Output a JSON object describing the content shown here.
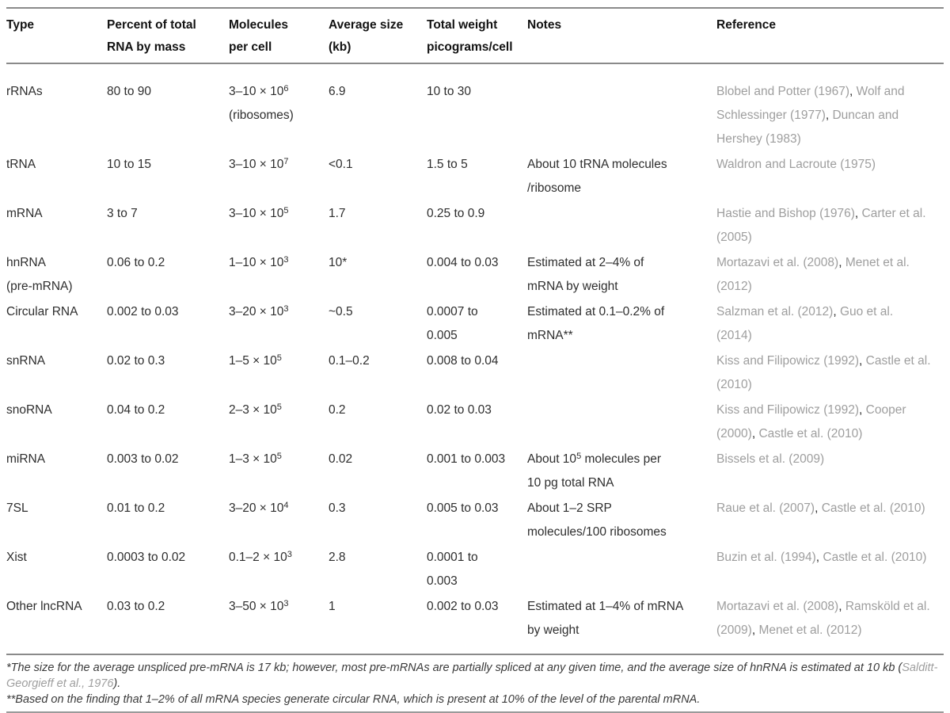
{
  "colors": {
    "text": "#2e2e2e",
    "header_text": "#121212",
    "reference_gray": "#9e9e9e",
    "rule_gray": "#8a8a8a",
    "background": "#ffffff"
  },
  "table": {
    "headers": [
      {
        "slug": "type",
        "lines": [
          "Type"
        ]
      },
      {
        "slug": "percent",
        "lines": [
          "Percent of total",
          "RNA by mass"
        ]
      },
      {
        "slug": "molecules",
        "lines": [
          "Molecules",
          "per cell"
        ]
      },
      {
        "slug": "size",
        "lines": [
          "Average size",
          "(kb)"
        ]
      },
      {
        "slug": "weight",
        "lines": [
          "Total weight",
          "picograms/cell"
        ]
      },
      {
        "slug": "notes",
        "lines": [
          "Notes"
        ]
      },
      {
        "slug": "reference",
        "lines": [
          "Reference"
        ]
      }
    ],
    "rows": [
      {
        "type": [
          {
            "t": "rRNAs"
          }
        ],
        "percent": [
          {
            "t": "80 to 90"
          }
        ],
        "molecules": [
          {
            "t": "3–10 × 10"
          },
          {
            "t": "6",
            "sup": true
          },
          {
            "br": true
          },
          {
            "t": "(ribosomes)"
          }
        ],
        "size": [
          {
            "t": "6.9"
          }
        ],
        "weight": [
          {
            "t": "10 to 30"
          }
        ],
        "notes": [],
        "refs": [
          "Blobel and Potter (1967)",
          "Wolf and Schlessinger (1977)",
          "Duncan and Hershey (1983)"
        ]
      },
      {
        "type": [
          {
            "t": "tRNA"
          }
        ],
        "percent": [
          {
            "t": "10 to 15"
          }
        ],
        "molecules": [
          {
            "t": "3–10 × 10"
          },
          {
            "t": "7",
            "sup": true
          }
        ],
        "size": [
          {
            "t": "<0.1"
          }
        ],
        "weight": [
          {
            "t": "1.5 to 5"
          }
        ],
        "notes": [
          {
            "t": "About 10 tRNA molecules"
          },
          {
            "br": true
          },
          {
            "t": "/ribosome"
          }
        ],
        "refs": [
          "Waldron and Lacroute (1975)"
        ]
      },
      {
        "type": [
          {
            "t": "mRNA"
          }
        ],
        "percent": [
          {
            "t": "3 to 7"
          }
        ],
        "molecules": [
          {
            "t": "3–10 × 10"
          },
          {
            "t": "5",
            "sup": true
          }
        ],
        "size": [
          {
            "t": "1.7"
          }
        ],
        "weight": [
          {
            "t": "0.25 to 0.9"
          }
        ],
        "notes": [],
        "refs": [
          "Hastie and Bishop (1976)",
          "Carter et al. (2005)"
        ]
      },
      {
        "type": [
          {
            "t": "hnRNA"
          },
          {
            "br": true
          },
          {
            "t": "(pre-mRNA)"
          }
        ],
        "percent": [
          {
            "t": "0.06 to 0.2"
          }
        ],
        "molecules": [
          {
            "t": "1–10 × 10"
          },
          {
            "t": "3",
            "sup": true
          }
        ],
        "size": [
          {
            "t": "10*"
          }
        ],
        "weight": [
          {
            "t": "0.004 to 0.03"
          }
        ],
        "notes": [
          {
            "t": "Estimated at 2–4% of"
          },
          {
            "br": true
          },
          {
            "t": "mRNA by weight"
          }
        ],
        "refs": [
          "Mortazavi et al. (2008)",
          "Menet et al. (2012)"
        ]
      },
      {
        "type": [
          {
            "t": "Circular RNA"
          }
        ],
        "percent": [
          {
            "t": "0.002 to 0.03"
          }
        ],
        "molecules": [
          {
            "t": "3–20 × 10"
          },
          {
            "t": "3",
            "sup": true
          }
        ],
        "size": [
          {
            "t": "~0.5"
          }
        ],
        "weight": [
          {
            "t": "0.0007 to"
          },
          {
            "br": true
          },
          {
            "t": "0.005"
          }
        ],
        "notes": [
          {
            "t": "Estimated at 0.1–0.2% of"
          },
          {
            "br": true
          },
          {
            "t": "mRNA**"
          }
        ],
        "refs": [
          "Salzman et al. (2012)",
          "Guo et al. (2014)"
        ]
      },
      {
        "type": [
          {
            "t": "snRNA"
          }
        ],
        "percent": [
          {
            "t": "0.02 to 0.3"
          }
        ],
        "molecules": [
          {
            "t": "1–5 × 10"
          },
          {
            "t": "5",
            "sup": true
          }
        ],
        "size": [
          {
            "t": "0.1–0.2"
          }
        ],
        "weight": [
          {
            "t": "0.008 to 0.04"
          }
        ],
        "notes": [],
        "refs": [
          "Kiss and Filipowicz (1992)",
          "Castle et al. (2010)"
        ]
      },
      {
        "type": [
          {
            "t": "snoRNA"
          }
        ],
        "percent": [
          {
            "t": "0.04 to 0.2"
          }
        ],
        "molecules": [
          {
            "t": "2–3 × 10"
          },
          {
            "t": "5",
            "sup": true
          }
        ],
        "size": [
          {
            "t": "0.2"
          }
        ],
        "weight": [
          {
            "t": "0.02 to 0.03"
          }
        ],
        "notes": [],
        "refs": [
          "Kiss and Filipowicz (1992)",
          "Cooper (2000)",
          "Castle et al. (2010)"
        ]
      },
      {
        "type": [
          {
            "t": "miRNA"
          }
        ],
        "percent": [
          {
            "t": "0.003 to 0.02"
          }
        ],
        "molecules": [
          {
            "t": "1–3 × 10"
          },
          {
            "t": "5",
            "sup": true
          }
        ],
        "size": [
          {
            "t": "0.02"
          }
        ],
        "weight": [
          {
            "t": "0.001 to 0.003"
          }
        ],
        "notes": [
          {
            "t": "About 10"
          },
          {
            "t": "5",
            "sup": true
          },
          {
            "t": " molecules per"
          },
          {
            "br": true
          },
          {
            "t": "10 pg total RNA"
          }
        ],
        "refs": [
          "Bissels et al. (2009)"
        ]
      },
      {
        "type": [
          {
            "t": "7SL"
          }
        ],
        "percent": [
          {
            "t": "0.01 to 0.2"
          }
        ],
        "molecules": [
          {
            "t": "3–20 × 10"
          },
          {
            "t": "4",
            "sup": true
          }
        ],
        "size": [
          {
            "t": "0.3"
          }
        ],
        "weight": [
          {
            "t": "0.005 to 0.03"
          }
        ],
        "notes": [
          {
            "t": "About 1–2 SRP"
          },
          {
            "br": true
          },
          {
            "t": "molecules/100 ribosomes"
          }
        ],
        "refs": [
          "Raue et al. (2007)",
          "Castle et al. (2010)"
        ]
      },
      {
        "type": [
          {
            "t": "Xist"
          }
        ],
        "percent": [
          {
            "t": "0.0003 to 0.02"
          }
        ],
        "molecules": [
          {
            "t": "0.1–2 × 10"
          },
          {
            "t": "3",
            "sup": true
          }
        ],
        "size": [
          {
            "t": "2.8"
          }
        ],
        "weight": [
          {
            "t": "0.0001 to"
          },
          {
            "br": true
          },
          {
            "t": "0.003"
          }
        ],
        "notes": [],
        "refs": [
          "Buzin et al. (1994)",
          "Castle et al. (2010)"
        ]
      },
      {
        "type": [
          {
            "t": "Other lncRNA"
          }
        ],
        "percent": [
          {
            "t": "0.03 to 0.2"
          }
        ],
        "molecules": [
          {
            "t": "3–50 × 10"
          },
          {
            "t": "3",
            "sup": true
          }
        ],
        "size": [
          {
            "t": "1"
          }
        ],
        "weight": [
          {
            "t": "0.002 to 0.03"
          }
        ],
        "notes": [
          {
            "t": "Estimated at 1–4% of mRNA"
          },
          {
            "br": true
          },
          {
            "t": "by weight"
          }
        ],
        "refs": [
          "Mortazavi et al. (2008)",
          "Ramsköld et al. (2009)",
          "Menet et al. (2012)"
        ]
      }
    ]
  },
  "footnotes": [
    [
      {
        "t": "*The size for the average unspliced pre-mRNA is 17 kb; however, most pre-mRNAs are partially spliced at any given time, and the average size of hnRNA is estimated at 10 kb ("
      },
      {
        "t": "Salditt-Georgieff et al., 1976",
        "gray": true
      },
      {
        "t": ")."
      }
    ],
    [
      {
        "t": "**Based on the finding that 1–2% of all mRNA species generate circular RNA, which is present at 10% of the level of the parental mRNA."
      }
    ]
  ]
}
